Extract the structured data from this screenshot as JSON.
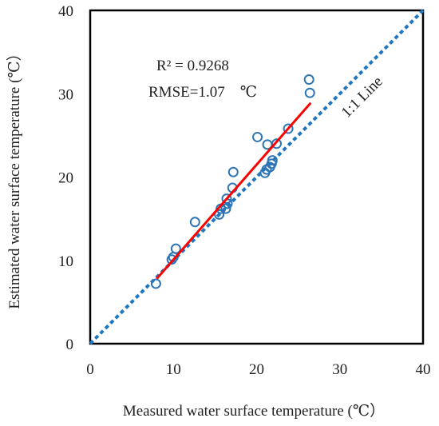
{
  "chart_data": {
    "type": "scatter",
    "title": "",
    "xlabel": "Measured water surface temperature (℃）",
    "ylabel": "Estimated water surface temperature (℃）",
    "xlim": [
      0,
      40
    ],
    "ylim": [
      0,
      40
    ],
    "xticks": [
      "0",
      "10",
      "20",
      "30",
      "40"
    ],
    "yticks": [
      "0",
      "10",
      "20",
      "30",
      "40"
    ],
    "grid": false,
    "points": [
      {
        "x": 7.9,
        "y": 7.2
      },
      {
        "x": 9.8,
        "y": 10.1
      },
      {
        "x": 10.0,
        "y": 10.4
      },
      {
        "x": 10.3,
        "y": 11.4
      },
      {
        "x": 12.6,
        "y": 14.6
      },
      {
        "x": 15.5,
        "y": 15.5
      },
      {
        "x": 15.7,
        "y": 16.2
      },
      {
        "x": 16.3,
        "y": 16.2
      },
      {
        "x": 16.5,
        "y": 16.8
      },
      {
        "x": 16.4,
        "y": 17.4
      },
      {
        "x": 17.1,
        "y": 18.7
      },
      {
        "x": 17.2,
        "y": 20.6
      },
      {
        "x": 20.1,
        "y": 24.8
      },
      {
        "x": 21.0,
        "y": 20.5
      },
      {
        "x": 21.2,
        "y": 20.9
      },
      {
        "x": 21.3,
        "y": 23.9
      },
      {
        "x": 21.6,
        "y": 21.2
      },
      {
        "x": 21.8,
        "y": 21.6
      },
      {
        "x": 21.9,
        "y": 22.0
      },
      {
        "x": 22.4,
        "y": 24.0
      },
      {
        "x": 23.8,
        "y": 25.8
      },
      {
        "x": 26.4,
        "y": 30.1
      },
      {
        "x": 26.3,
        "y": 31.7
      }
    ],
    "fit_line": {
      "x": [
        8.0,
        26.5
      ],
      "y": [
        7.8,
        28.9
      ],
      "color": "#ff0000"
    },
    "reference_line": {
      "label": "1:1 Line",
      "x": [
        0,
        40
      ],
      "y": [
        0,
        40
      ],
      "color": "#1f77c0"
    },
    "annotations": {
      "r2": "R² = 0.9268",
      "rmse": "RMSE=1.07　℃"
    },
    "marker_color": "#2e75b6"
  }
}
